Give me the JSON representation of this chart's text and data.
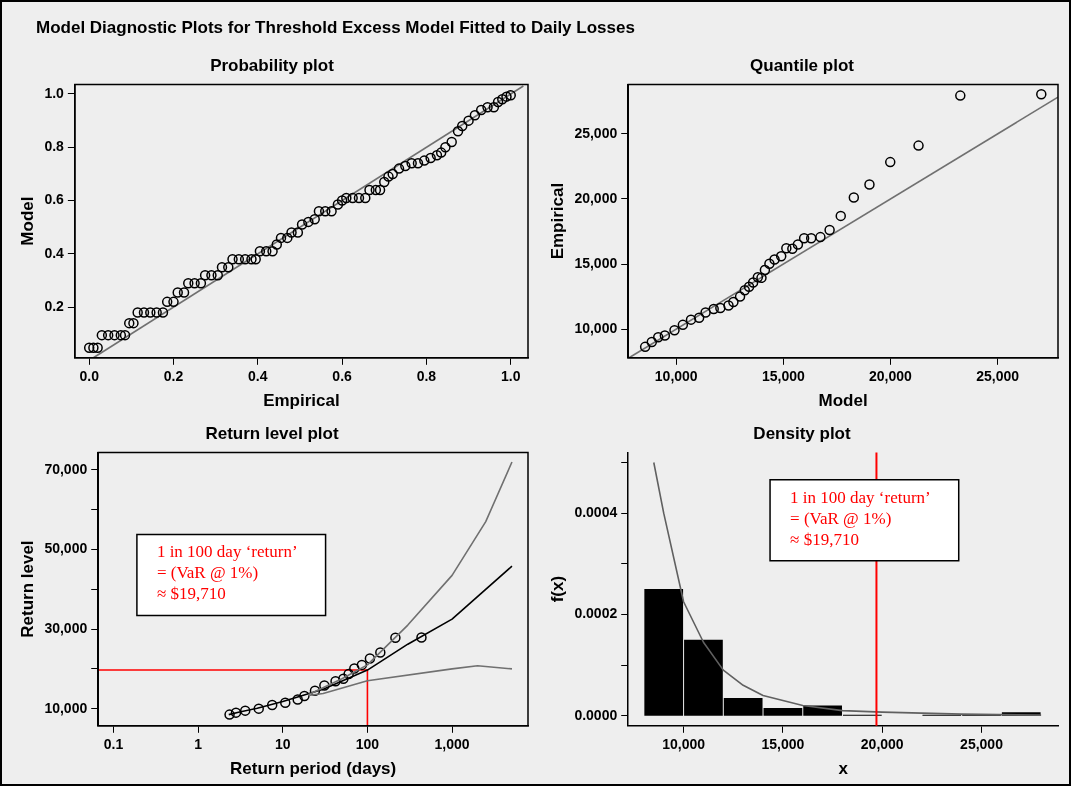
{
  "chart_data": [
    {
      "type": "other",
      "title": "Model Diagnostic Plots for Threshold Excess Model Fitted to Daily Losses"
    },
    {
      "type": "scatter",
      "title": "Probability plot",
      "xlabel": "Empirical",
      "ylabel": "Model",
      "xlim": [
        -0.034,
        1.041
      ],
      "xticks": [
        {
          "value": 0,
          "label": "0.0"
        },
        0.2,
        0.4,
        0.6,
        0.8,
        {
          "value": 1,
          "label": "1.0"
        }
      ],
      "ylim": [
        0.01,
        1.036
      ],
      "yticks": [
        0.2,
        0.4,
        0.6,
        0.8,
        {
          "value": 1,
          "label": "1.0"
        }
      ],
      "series": [
        {
          "type": "scatter",
          "marker": "circle",
          "color": "#000000",
          "x": [
            0.0,
            0.01,
            0.02,
            0.03,
            0.045,
            0.06,
            0.075,
            0.085,
            0.095,
            0.105,
            0.115,
            0.13,
            0.145,
            0.16,
            0.175,
            0.185,
            0.2,
            0.21,
            0.225,
            0.235,
            0.25,
            0.265,
            0.275,
            0.29,
            0.305,
            0.315,
            0.33,
            0.34,
            0.355,
            0.37,
            0.385,
            0.395,
            0.405,
            0.42,
            0.435,
            0.445,
            0.455,
            0.47,
            0.48,
            0.495,
            0.505,
            0.52,
            0.535,
            0.545,
            0.56,
            0.575,
            0.59,
            0.6,
            0.61,
            0.625,
            0.64,
            0.655,
            0.665,
            0.68,
            0.69,
            0.7,
            0.71,
            0.72,
            0.735,
            0.75,
            0.765,
            0.78,
            0.795,
            0.81,
            0.825,
            0.835,
            0.845,
            0.86,
            0.875,
            0.885,
            0.9,
            0.915,
            0.93,
            0.945,
            0.96,
            0.97,
            0.98,
            0.99,
            1.0
          ],
          "values": [
            0.048,
            0.048,
            0.048,
            0.095,
            0.095,
            0.095,
            0.095,
            0.095,
            0.14,
            0.14,
            0.18,
            0.18,
            0.18,
            0.18,
            0.18,
            0.22,
            0.22,
            0.255,
            0.255,
            0.29,
            0.29,
            0.29,
            0.32,
            0.32,
            0.32,
            0.35,
            0.35,
            0.38,
            0.38,
            0.38,
            0.38,
            0.38,
            0.41,
            0.41,
            0.41,
            0.435,
            0.46,
            0.46,
            0.48,
            0.48,
            0.51,
            0.52,
            0.53,
            0.56,
            0.56,
            0.56,
            0.585,
            0.6,
            0.61,
            0.61,
            0.61,
            0.61,
            0.64,
            0.64,
            0.64,
            0.67,
            0.69,
            0.7,
            0.72,
            0.73,
            0.74,
            0.74,
            0.75,
            0.76,
            0.77,
            0.78,
            0.8,
            0.82,
            0.86,
            0.88,
            0.9,
            0.92,
            0.94,
            0.95,
            0.95,
            0.97,
            0.98,
            0.99,
            0.995
          ]
        },
        {
          "type": "line",
          "marker": "none",
          "color": "#707070",
          "x": [
            0.01,
            1.03
          ],
          "values": [
            0.01,
            1.03
          ]
        }
      ]
    },
    {
      "type": "scatter",
      "title": "Quantile plot",
      "xlabel": "Model",
      "ylabel": "Empirical",
      "xlim": [
        7760,
        27820
      ],
      "xticks": [
        {
          "value": 10000,
          "label": "10,000"
        },
        {
          "value": 15000,
          "label": "15,000"
        },
        {
          "value": 20000,
          "label": "20,000"
        },
        {
          "value": 25000,
          "label": "25,000"
        }
      ],
      "ylim": [
        7800,
        28800
      ],
      "yticks": [
        {
          "value": 10000,
          "label": "10,000"
        },
        {
          "value": 15000,
          "label": "15,000"
        },
        {
          "value": 20000,
          "label": "20,000"
        },
        {
          "value": 25000,
          "label": "25,000"
        }
      ],
      "series": [
        {
          "type": "scatter",
          "marker": "circle",
          "color": "#000000",
          "x": [
            8550,
            8860,
            9160,
            9470,
            9920,
            10310,
            10690,
            11070,
            11370,
            11750,
            12060,
            12440,
            12670,
            12980,
            13200,
            13400,
            13590,
            13810,
            13980,
            14140,
            14350,
            14590,
            14900,
            15140,
            15420,
            15680,
            15970,
            16300,
            16730,
            17160,
            17680,
            18290,
            19020,
            19990,
            21310,
            23260,
            27040
          ],
          "values": [
            8640,
            9020,
            9380,
            9510,
            9920,
            10330,
            10730,
            10870,
            11280,
            11550,
            11630,
            11820,
            12090,
            12500,
            12990,
            13260,
            13590,
            13990,
            13940,
            14540,
            15030,
            15350,
            15600,
            16220,
            16170,
            16500,
            16980,
            16980,
            17070,
            17610,
            18700,
            20110,
            21110,
            22830,
            24100,
            27940,
            28040
          ]
        },
        {
          "type": "line",
          "marker": "none",
          "color": "#707070",
          "x": [
            7800,
            27820
          ],
          "values": [
            7800,
            27820
          ]
        }
      ]
    },
    {
      "type": "scatter",
      "title": "Return level plot",
      "xlabel": "Return period (days)",
      "ylabel": "Return level",
      "log": "x",
      "xlim": [
        0.066,
        7890
      ],
      "xticks": [
        0.1,
        1,
        10,
        100,
        {
          "value": 1000,
          "label": "1,000"
        }
      ],
      "ylim": [
        5690,
        74400
      ],
      "yticks": [
        {
          "value": 10000,
          "label": "10,000"
        },
        {
          "value": 20000,
          "label": null
        },
        {
          "value": 30000,
          "label": "30,000"
        },
        {
          "value": 40000,
          "label": null
        },
        {
          "value": 50000,
          "label": "50,000"
        },
        {
          "value": 60000,
          "label": null
        },
        {
          "value": 70000,
          "label": "70,000"
        }
      ],
      "annotations": [
        "1 in 100 day ‘return’\n= (VaR @ 1%)\n≈ $19,710"
      ],
      "series": [
        {
          "type": "line",
          "marker": "none",
          "color": "#707070",
          "x": [
            20,
            50,
            100,
            300,
            1000,
            2500,
            5100
          ],
          "values": [
            13500,
            17500,
            21000,
            31000,
            43500,
            57000,
            72000
          ]
        },
        {
          "type": "line",
          "marker": "none",
          "color": "#707070",
          "x": [
            20,
            30,
            100,
            1000,
            2000,
            5100
          ],
          "values": [
            13300,
            13800,
            17000,
            20000,
            20800,
            20000
          ]
        },
        {
          "type": "line",
          "marker": "none",
          "color": "#000000",
          "x": [
            2.3,
            3,
            5,
            10,
            30,
            100,
            300,
            1000,
            5100
          ],
          "values": [
            8500,
            9100,
            10100,
            11800,
            14900,
            19700,
            26200,
            32500,
            45800
          ]
        },
        {
          "type": "scatter",
          "marker": "circle",
          "color": "#000000",
          "x": [
            2.35,
            2.8,
            3.6,
            5.2,
            7.5,
            10.7,
            15,
            18,
            24,
            31,
            42,
            52,
            60,
            70,
            86,
            107,
            142,
            214,
            435
          ],
          "values": [
            8500,
            9000,
            9500,
            10000,
            10900,
            11500,
            12300,
            13200,
            14500,
            15800,
            16900,
            17500,
            18700,
            20100,
            21000,
            22600,
            24100,
            27800,
            27900
          ]
        },
        {
          "type": "line",
          "marker": "none",
          "color": "#ff0000",
          "x": [
            0.066,
            100,
            100
          ],
          "values": [
            19700,
            19700,
            5690
          ]
        }
      ]
    },
    {
      "type": "histogram",
      "title": "Density plot",
      "xlabel": "x",
      "ylabel": "f(x)",
      "color": "#000000",
      "bins": [
        8000,
        10000,
        12000,
        14000,
        16000,
        18000,
        20000,
        22000,
        24000,
        26000,
        28000
      ],
      "values": [
        0.00025,
        0.00015,
        3.5e-05,
        1.5e-05,
        2e-05,
        2e-06,
        0,
        2e-06,
        2e-06,
        7e-06
      ],
      "xlim": [
        7213,
        28850
      ],
      "xticks": [
        {
          "value": 10000,
          "label": "10,000"
        },
        {
          "value": 15000,
          "label": "15,000"
        },
        {
          "value": 20000,
          "label": "20,000"
        },
        {
          "value": 25000,
          "label": "25,000"
        }
      ],
      "ylim": [
        -2e-05,
        0.00052
      ],
      "yticks": [
        {
          "value": 0,
          "label": "0.0000"
        },
        {
          "value": 0.0001,
          "label": null
        },
        {
          "value": 0.0002,
          "label": "0.0002"
        },
        {
          "value": 0.0003,
          "label": null
        },
        {
          "value": 0.0004,
          "label": "0.0004"
        },
        {
          "value": 0.0005,
          "label": null
        }
      ],
      "ref_lines": [
        {
          "axis": "x",
          "value": 19710,
          "color": "#ff0000"
        }
      ],
      "annotations": [
        "1 in 100 day ‘return’\n= (VaR @ 1%)\n≈ $19,710"
      ],
      "series": [
        {
          "type": "line",
          "marker": "none",
          "color": "#606060",
          "x": [
            8500,
            9000,
            10000,
            11000,
            12000,
            13000,
            14000,
            16000,
            18000,
            20000,
            24000,
            28000
          ],
          "values": [
            0.0005,
            0.0004,
            0.000225,
            0.000145,
            9e-05,
            6e-05,
            4e-05,
            2e-05,
            1e-05,
            7e-06,
            3e-06,
            1e-06
          ]
        }
      ]
    }
  ]
}
